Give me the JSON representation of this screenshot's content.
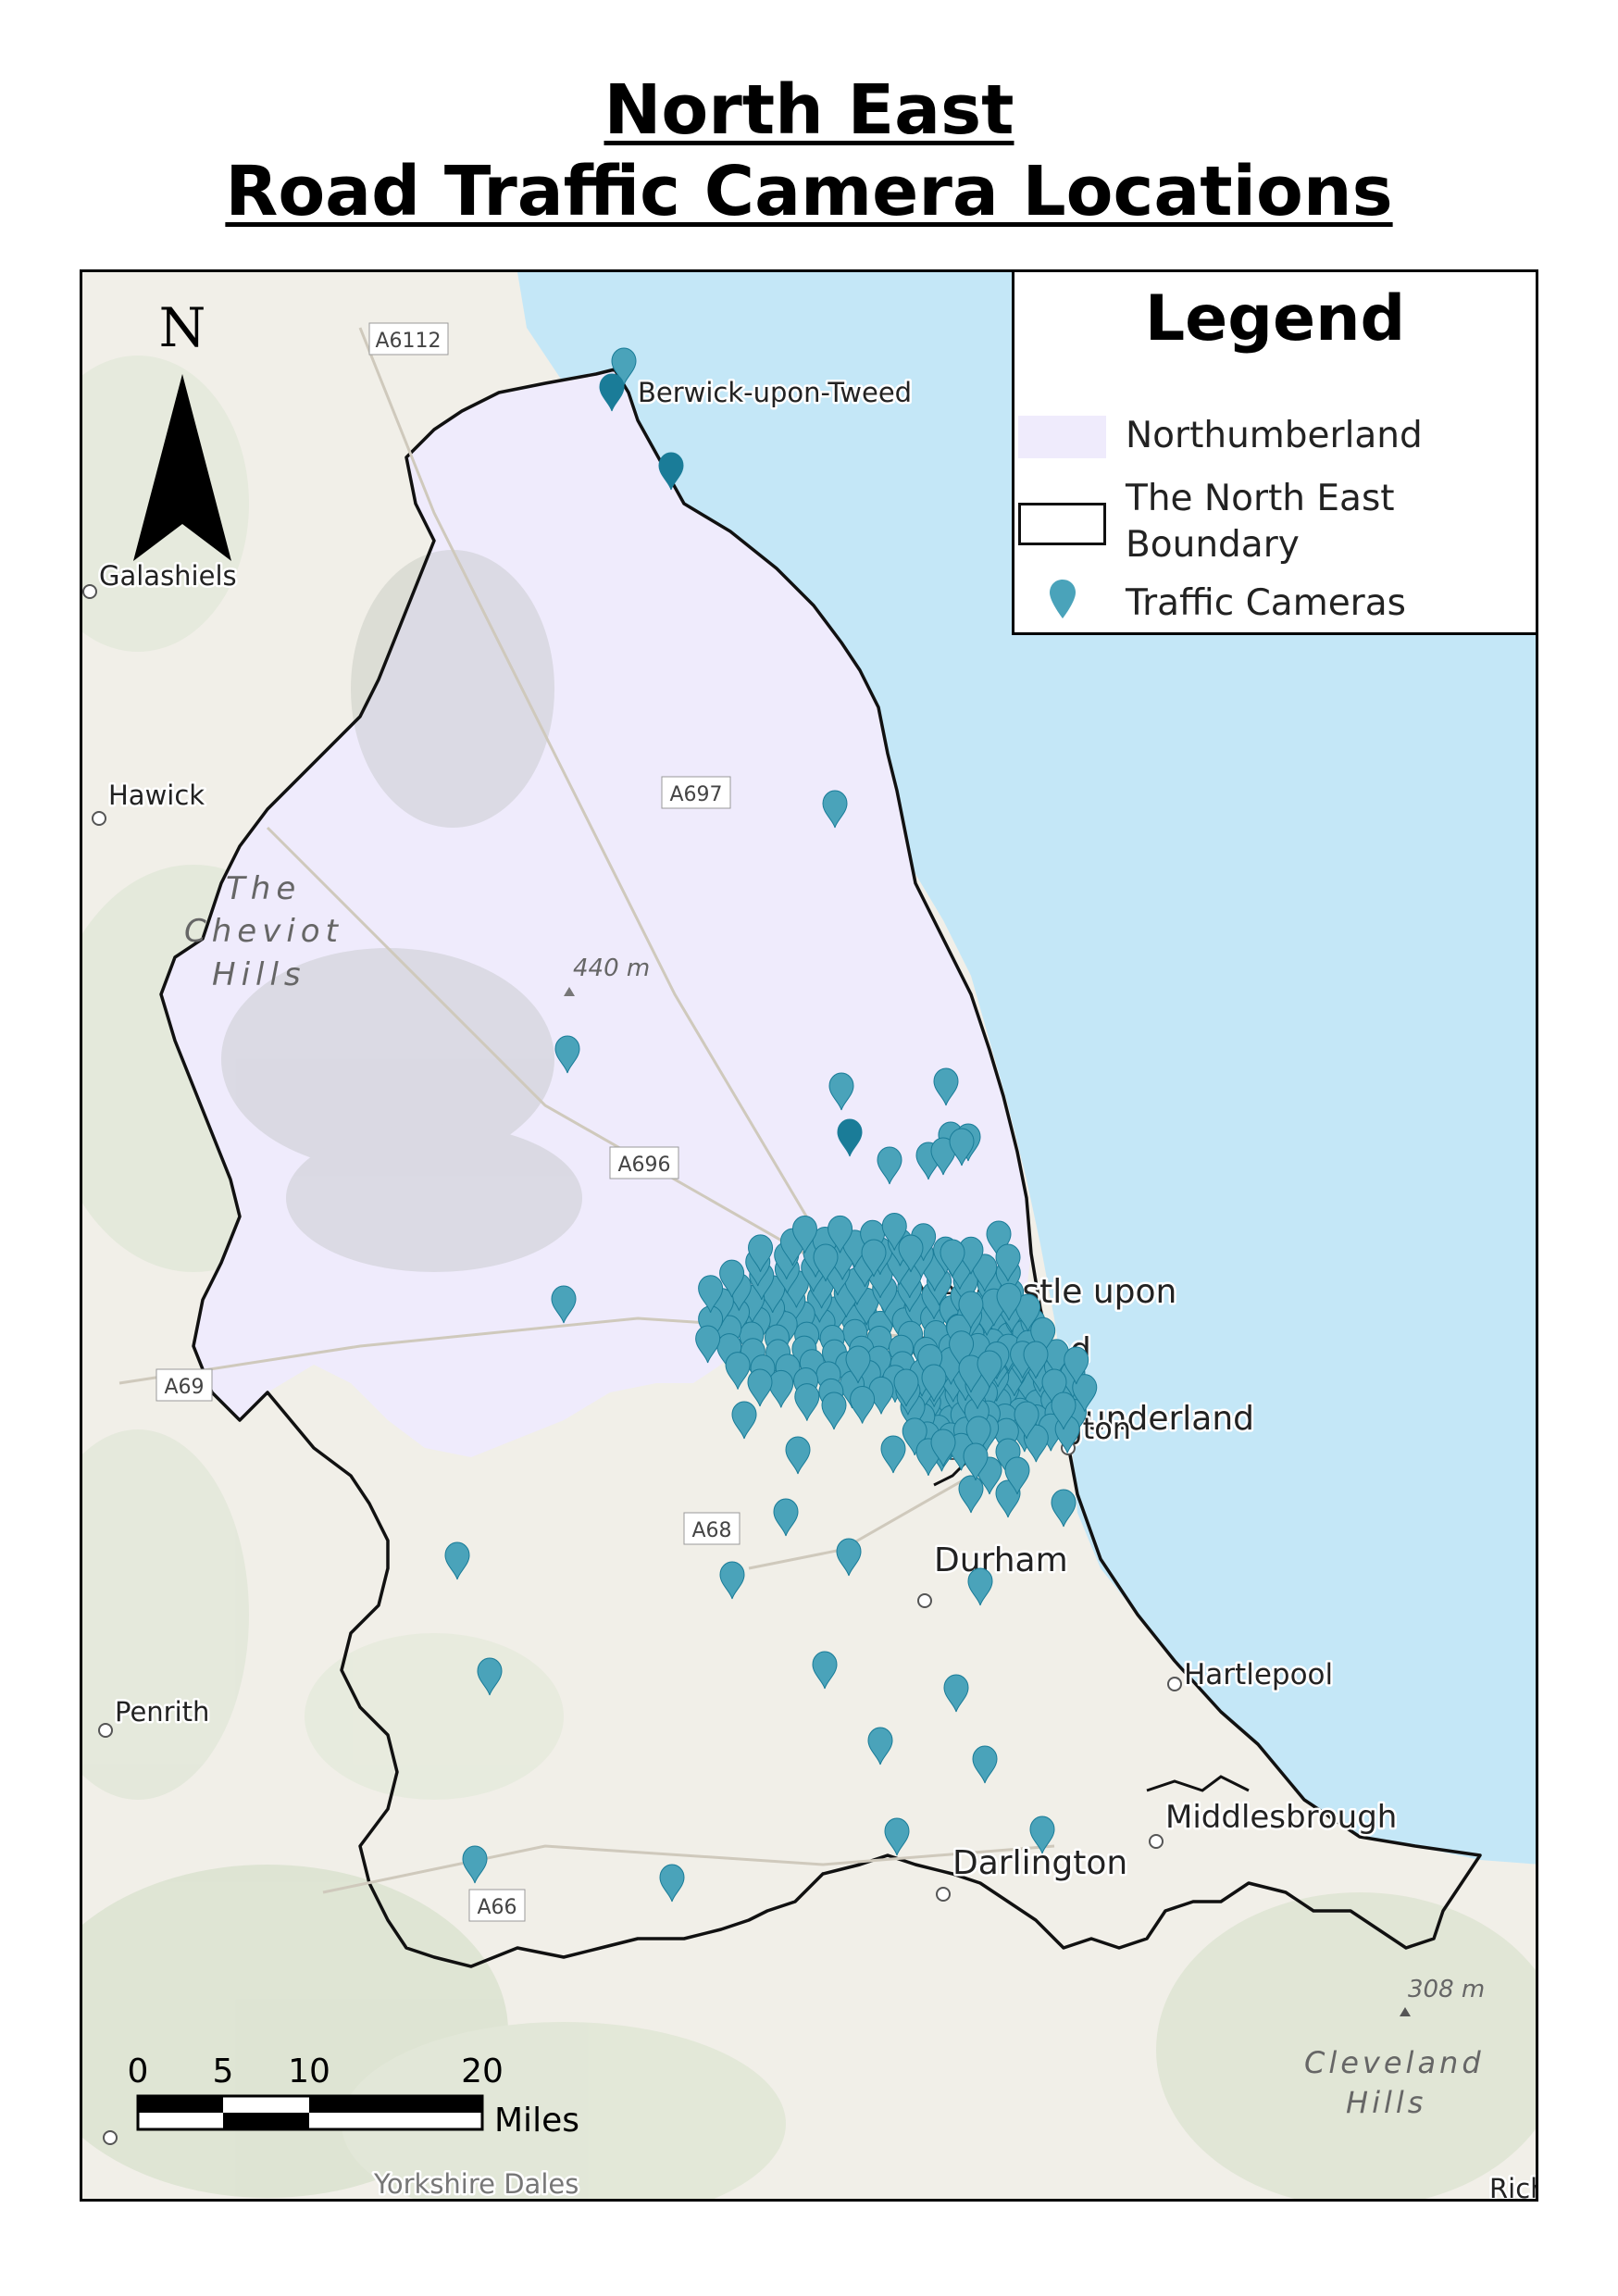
{
  "title": {
    "line1": "North East",
    "line2": "Road Traffic Camera Locations"
  },
  "north_arrow": {
    "label": "N"
  },
  "legend": {
    "heading": "Legend",
    "items": [
      {
        "label": "Northumberland",
        "swatch": "#efebfc"
      },
      {
        "label": "The North East Boundary",
        "label_line1": "The North East",
        "label_line2": "Boundary",
        "swatch": "#ffffff"
      },
      {
        "label": "Traffic Cameras",
        "swatch": "#4aa3ba"
      }
    ]
  },
  "scale_bar": {
    "ticks": [
      "0",
      "5",
      "10",
      "20"
    ],
    "unit": "Miles"
  },
  "colors": {
    "sea": "#c4e7f7",
    "land": "#f1efe8",
    "northumberland_fill": "#efebfc",
    "boundary": "#111111",
    "camera": "#4aa3ba",
    "camera_dark": "#1a7c98"
  },
  "place_labels": [
    "Berwick-upon-Tweed",
    "Galashiels",
    "Hawick",
    "Newcastle upon",
    "Gateshead",
    "Sunderland",
    "Washington",
    "Durham",
    "Hartlepool",
    "Middlesbrough",
    "Darlington",
    "Penrith",
    "Yorkshire Dales",
    "Rich"
  ],
  "terrain_labels": [
    "The",
    "Cheviot",
    "Hills",
    "Cleveland",
    "Hills",
    "440 m",
    "308 m"
  ],
  "road_labels": [
    "A6112",
    "A697",
    "A696",
    "A69",
    "A68",
    "A66"
  ]
}
